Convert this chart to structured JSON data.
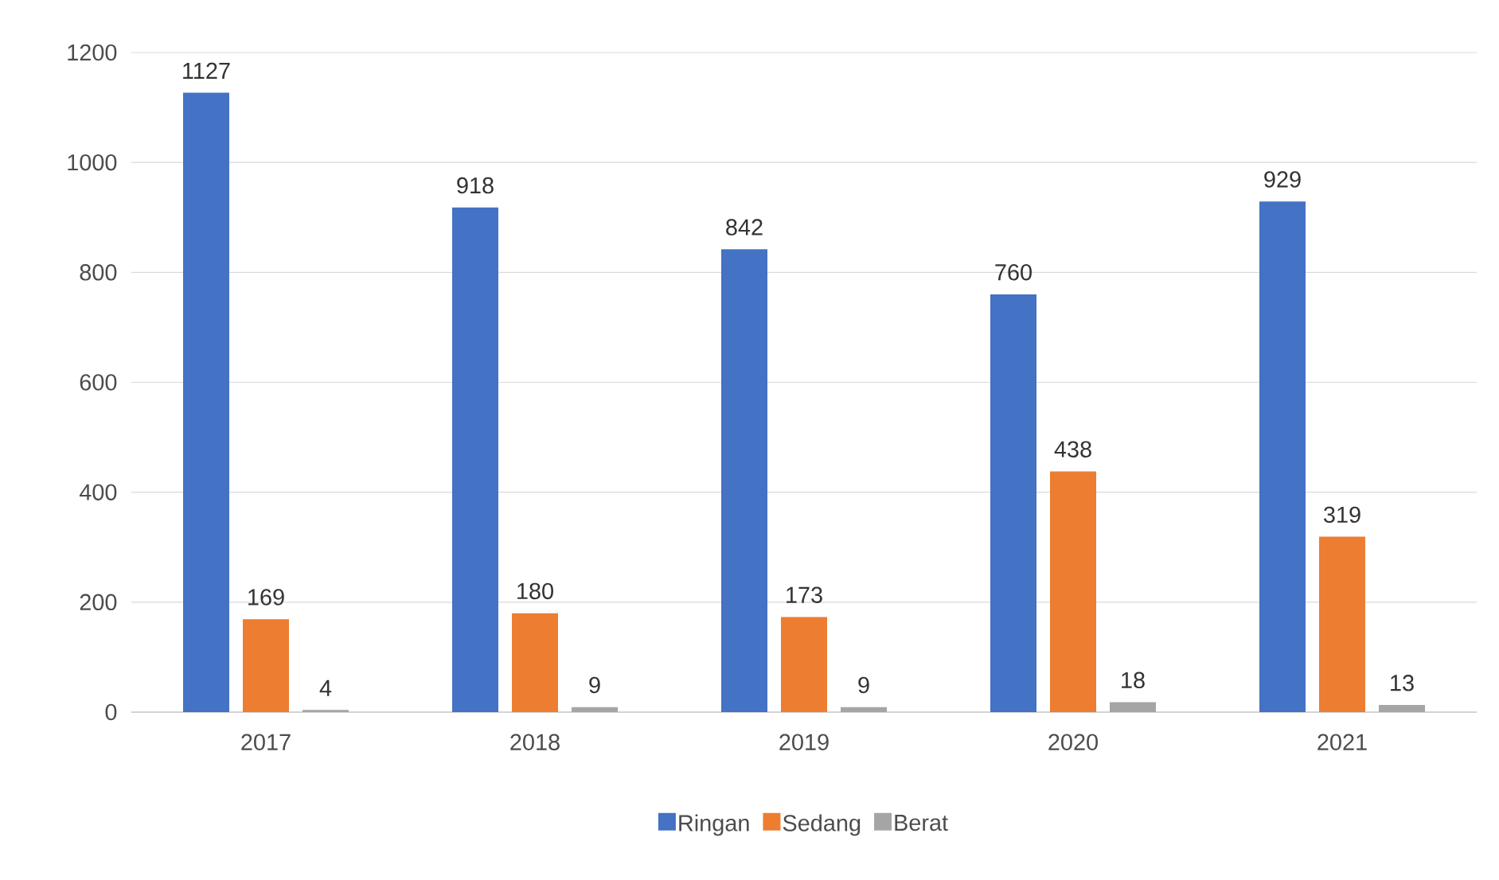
{
  "chart_data": {
    "type": "bar",
    "categories": [
      "2017",
      "2018",
      "2019",
      "2020",
      "2021"
    ],
    "series": [
      {
        "name": "Ringan",
        "color": "#4472c4",
        "values": [
          1127,
          918,
          842,
          760,
          929
        ]
      },
      {
        "name": "Sedang",
        "color": "#ed7d31",
        "values": [
          169,
          180,
          173,
          438,
          319
        ]
      },
      {
        "name": "Berat",
        "color": "#a5a5a5",
        "values": [
          4,
          9,
          9,
          18,
          13
        ]
      }
    ],
    "ylim": [
      0,
      1200
    ],
    "yticks": [
      0,
      200,
      400,
      600,
      800,
      1000,
      1200
    ],
    "grid": "y",
    "legend": "bottom",
    "data_labels": true
  }
}
